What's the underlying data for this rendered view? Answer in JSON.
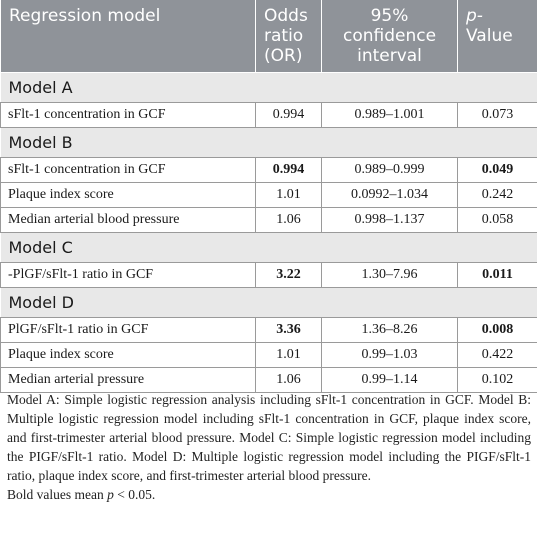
{
  "header": {
    "col1": "Regression model",
    "col2": "Odds ratio (OR)",
    "col3": "95% confidence interval",
    "col4_italic": "p-",
    "col4_rest": "Value"
  },
  "sections": [
    {
      "title": "Model A",
      "rows": [
        {
          "label": "sFlt-1 concentration in GCF",
          "or": "0.994",
          "ci": "0.989–1.001",
          "p": "0.073",
          "bold": false
        }
      ]
    },
    {
      "title": "Model B",
      "rows": [
        {
          "label": "sFlt-1 concentration in GCF",
          "or": "0.994",
          "ci": "0.989–0.999",
          "p": "0.049",
          "bold": true
        },
        {
          "label": "Plaque index score",
          "or": "1.01",
          "ci": "0.0992–1.034",
          "p": "0.242",
          "bold": false
        },
        {
          "label": "Median arterial blood pressure",
          "or": "1.06",
          "ci": "0.998–1.137",
          "p": "0.058",
          "bold": false
        }
      ]
    },
    {
      "title": "Model C",
      "rows": [
        {
          "label": "-PlGF/sFlt-1 ratio in GCF",
          "or": "3.22",
          "ci": "1.30–7.96",
          "p": "0.011",
          "bold": true
        }
      ]
    },
    {
      "title": "Model D",
      "rows": [
        {
          "label": "PlGF/sFlt-1 ratio in GCF",
          "or": "3.36",
          "ci": "1.36–8.26",
          "p": "0.008",
          "bold": true
        },
        {
          "label": "Plaque index score",
          "or": "1.01",
          "ci": "0.99–1.03",
          "p": "0.422",
          "bold": false
        },
        {
          "label": "Median arterial pressure",
          "or": "1.06",
          "ci": "0.99–1.14",
          "p": "0.102",
          "bold": false
        }
      ]
    }
  ],
  "notes": {
    "description": "Model A: Simple logistic regression analysis including sFlt-1 concentration in GCF. Model B: Multiple logistic regression model including sFlt-1 concentration in GCF, plaque index score, and first-trimester arterial blood pressure. Model C: Simple logistic regression model including the PIGF/sFlt-1 ratio. Model D: Multiple logistic regression model including the PIGF/sFlt-1 ratio, plaque index score, and first-trimester arterial blood pressure.",
    "bold_prefix": "Bold values mean",
    "bold_p": "p",
    "bold_suffix": "< 0.05."
  }
}
